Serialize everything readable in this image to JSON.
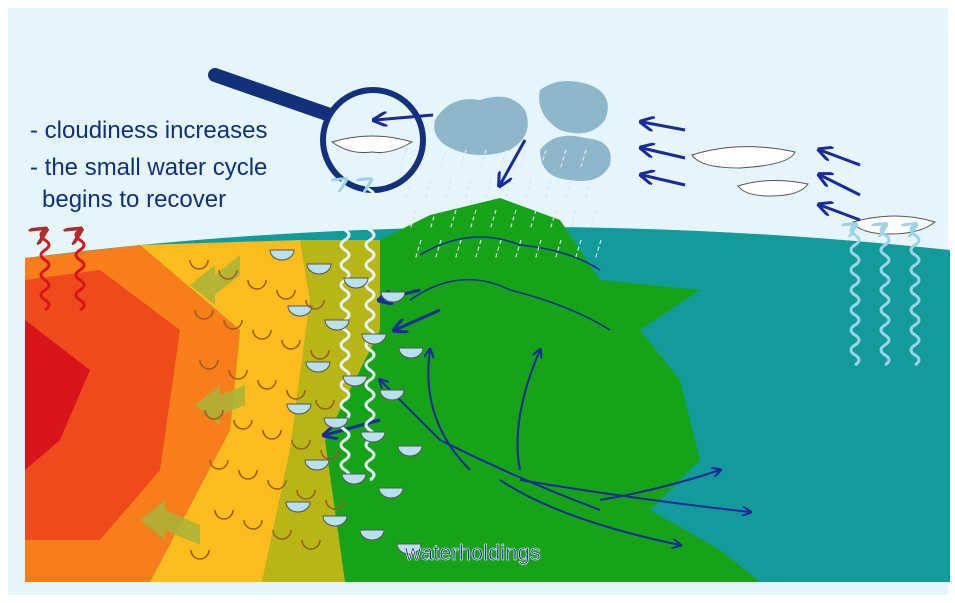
{
  "caption": {
    "lines": [
      "- cloudiness increases",
      "- the small water cycle",
      "begins to recover"
    ]
  },
  "label": "waterholdings"
}
